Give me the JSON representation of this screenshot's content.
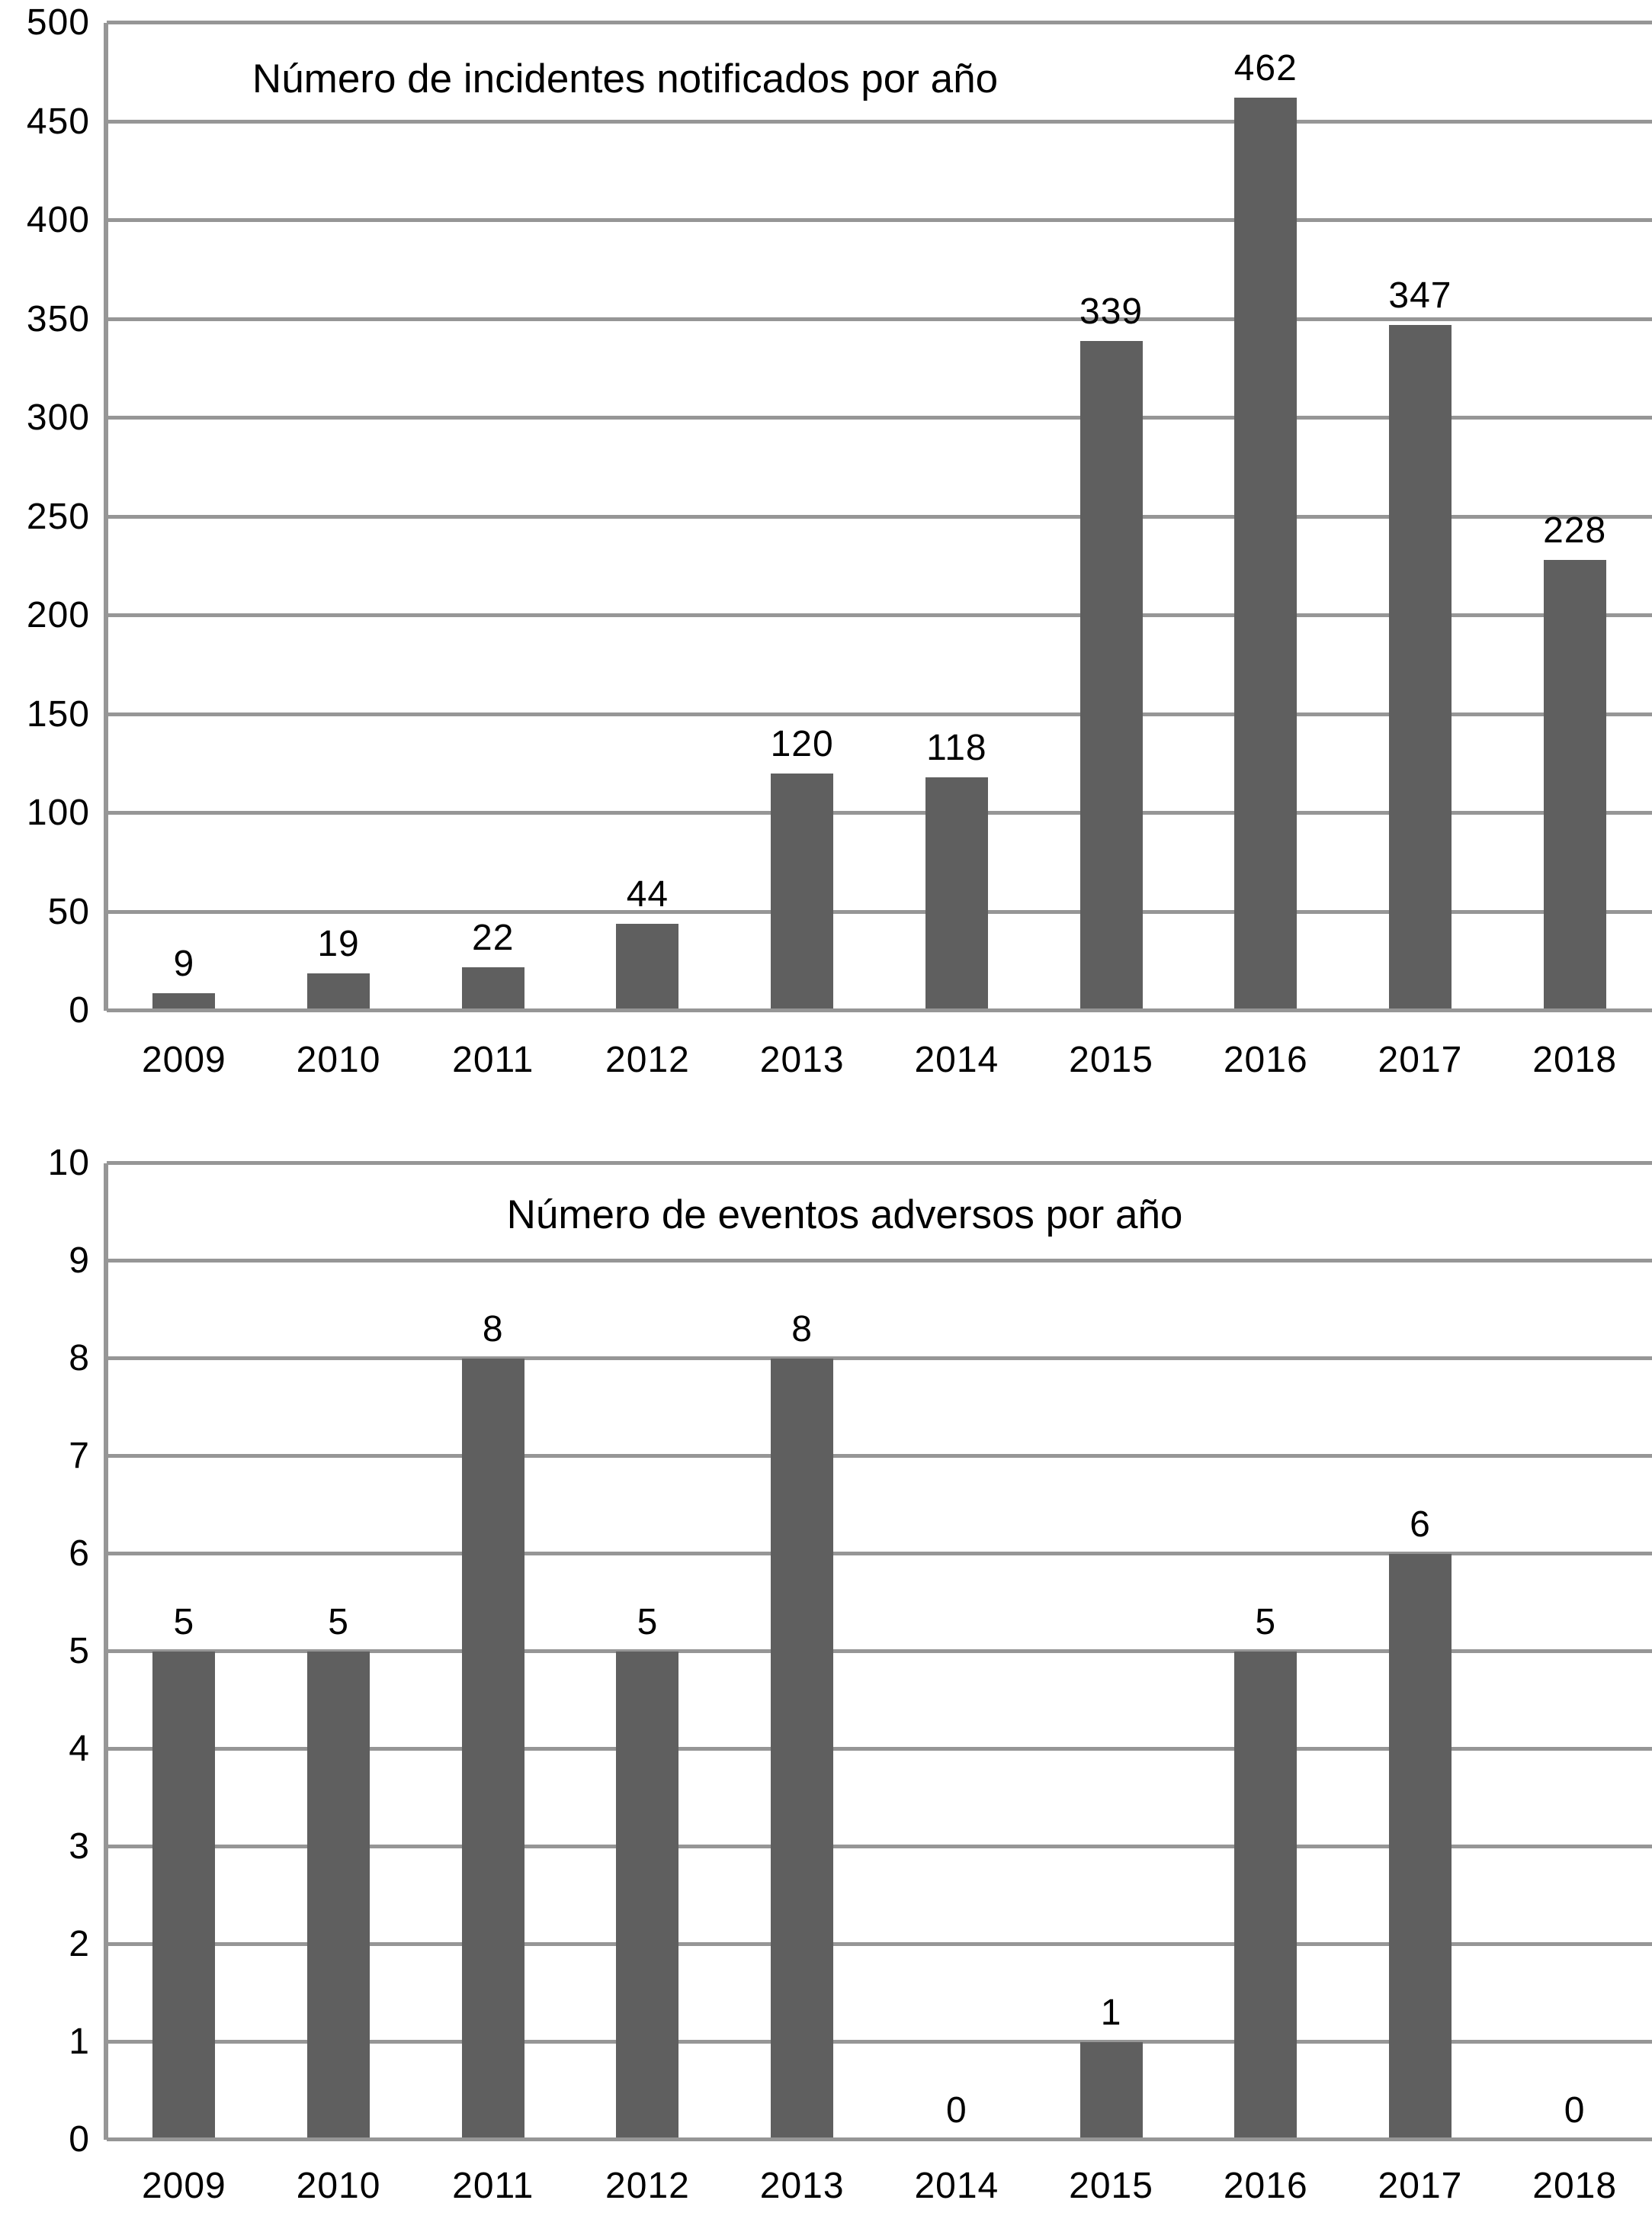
{
  "chart_data": [
    {
      "type": "bar",
      "title": "Número de incidentes notificados por año",
      "categories": [
        "2009",
        "2010",
        "2011",
        "2012",
        "2013",
        "2014",
        "2015",
        "2016",
        "2017",
        "2018"
      ],
      "values": [
        9,
        19,
        22,
        44,
        120,
        118,
        339,
        462,
        347,
        228
      ],
      "yticks": [
        500,
        450,
        400,
        350,
        300,
        250,
        200,
        150,
        100,
        50,
        0
      ],
      "ylim": [
        0,
        500
      ],
      "ytick_step": 50,
      "xlabel": "",
      "ylabel": "",
      "grid": "horizontal",
      "legend": "none",
      "value_labels": "above-bars",
      "bar_color": "#5f5f5f",
      "gridline_color": "#969696",
      "text_color": "#000000"
    },
    {
      "type": "bar",
      "title": "Número de eventos adversos por año",
      "categories": [
        "2009",
        "2010",
        "2011",
        "2012",
        "2013",
        "2014",
        "2015",
        "2016",
        "2017",
        "2018"
      ],
      "values": [
        5,
        5,
        8,
        5,
        8,
        0,
        1,
        5,
        6,
        0
      ],
      "yticks": [
        10,
        9,
        8,
        7,
        6,
        5,
        4,
        3,
        2,
        1,
        0
      ],
      "ylim": [
        0,
        10
      ],
      "ytick_step": 1,
      "xlabel": "",
      "ylabel": "",
      "grid": "horizontal",
      "legend": "none",
      "value_labels": "above-bars",
      "bar_color": "#5f5f5f",
      "gridline_color": "#969696",
      "text_color": "#000000"
    }
  ],
  "colors": {
    "bar": "#5f5f5f",
    "gridline": "#969696",
    "text": "#000000",
    "background": "#ffffff"
  }
}
